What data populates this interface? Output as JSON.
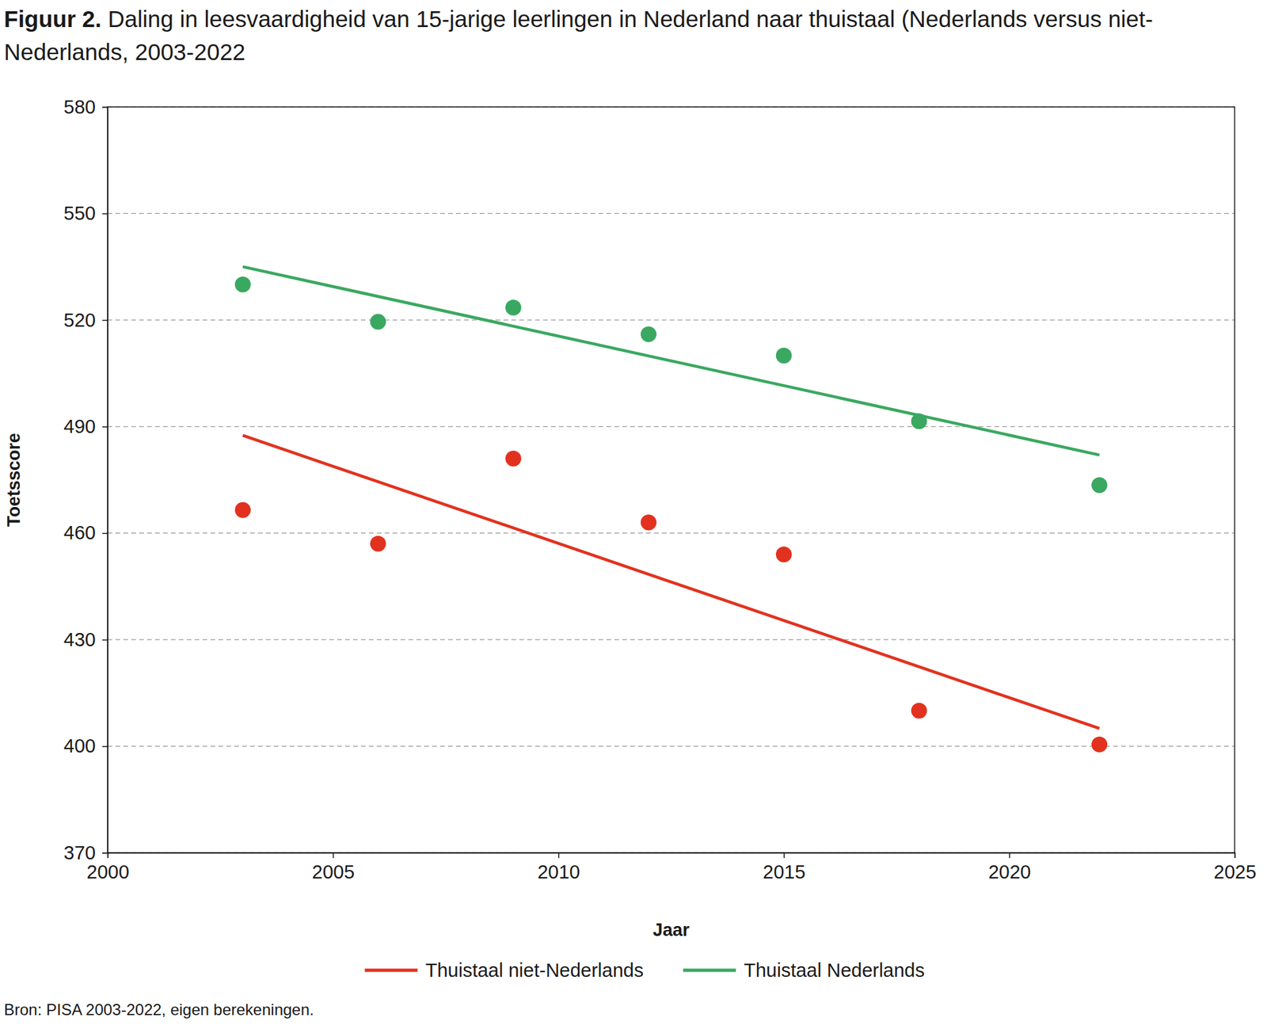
{
  "chart_data": {
    "type": "scatter",
    "title_label": "Figuur 2.",
    "title": "Daling in leesvaardigheid van 15-jarige leerlingen in Nederland naar thuistaal (Nederlands versus niet-Nederlands, 2003-2022",
    "source": "Bron: PISA 2003-2022, eigen berekeningen.",
    "x_label": "Jaar",
    "y_label": "Toetsscore",
    "x": [
      2003,
      2006,
      2009,
      2012,
      2015,
      2018,
      2022
    ],
    "trend_x": [
      2003,
      2022
    ],
    "series": [
      {
        "name": "Thuistaal niet-Nederlands",
        "color": "#e2321f",
        "values": [
          466.5,
          457,
          481,
          463,
          454,
          410,
          400.5
        ],
        "trend": [
          487.5,
          405
        ]
      },
      {
        "name": "Thuistaal Nederlands",
        "color": "#3aa860",
        "values": [
          530,
          519.5,
          523.5,
          516,
          510,
          491.5,
          473.5
        ],
        "trend": [
          535,
          482
        ]
      }
    ],
    "xlim": [
      2000,
      2025
    ],
    "xticks": [
      2000,
      2005,
      2010,
      2015,
      2020,
      2025
    ],
    "ylim": [
      370,
      580
    ],
    "yticks": [
      370,
      400,
      430,
      460,
      490,
      520,
      550,
      580
    ],
    "grid": true,
    "legend": "bottom",
    "marker": "circle"
  }
}
